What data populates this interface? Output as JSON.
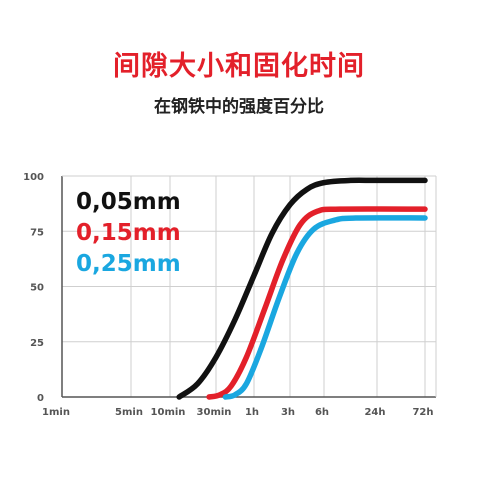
{
  "title": "间隙大小和固化时间",
  "subtitle": "在钢铁中的强度百分比",
  "colors": {
    "title": "#e3202a",
    "grid": "#cfcfcf",
    "axis": "#555555",
    "s005": "#111111",
    "s015": "#e3202a",
    "s025": "#1aa7e0"
  },
  "chart_data": {
    "type": "line",
    "title": "",
    "xlabel": "",
    "ylabel": "",
    "x_ticks": [
      "1min",
      "5min",
      "10min",
      "30min",
      "1h",
      "3h",
      "6h",
      "24h",
      "72h"
    ],
    "y_ticks": [
      "0",
      "25",
      "50",
      "75",
      "100"
    ],
    "ylim": [
      0,
      100
    ],
    "grid": true,
    "legend_position": "top-left",
    "series": [
      {
        "name": "0,05mm",
        "color": "#111111",
        "points": [
          [
            2.2,
            0
          ],
          [
            2.6,
            6
          ],
          [
            3.0,
            18
          ],
          [
            3.5,
            35
          ],
          [
            4.0,
            55
          ],
          [
            4.5,
            74
          ],
          [
            5.0,
            87
          ],
          [
            5.5,
            94
          ],
          [
            6.0,
            97
          ],
          [
            6.5,
            98
          ],
          [
            7.0,
            98
          ],
          [
            8.0,
            98
          ]
        ]
      },
      {
        "name": "0,15mm",
        "color": "#e3202a",
        "points": [
          [
            2.85,
            0
          ],
          [
            3.1,
            1
          ],
          [
            3.4,
            5
          ],
          [
            3.8,
            18
          ],
          [
            4.3,
            40
          ],
          [
            4.8,
            62
          ],
          [
            5.3,
            78
          ],
          [
            5.8,
            84
          ],
          [
            6.3,
            85
          ],
          [
            8.0,
            85
          ]
        ]
      },
      {
        "name": "0,25mm",
        "color": "#1aa7e0",
        "points": [
          [
            3.25,
            0
          ],
          [
            3.5,
            1
          ],
          [
            3.8,
            6
          ],
          [
            4.2,
            22
          ],
          [
            4.7,
            45
          ],
          [
            5.2,
            65
          ],
          [
            5.7,
            76
          ],
          [
            6.2,
            80
          ],
          [
            6.6,
            81
          ],
          [
            8.0,
            81
          ]
        ]
      }
    ]
  }
}
